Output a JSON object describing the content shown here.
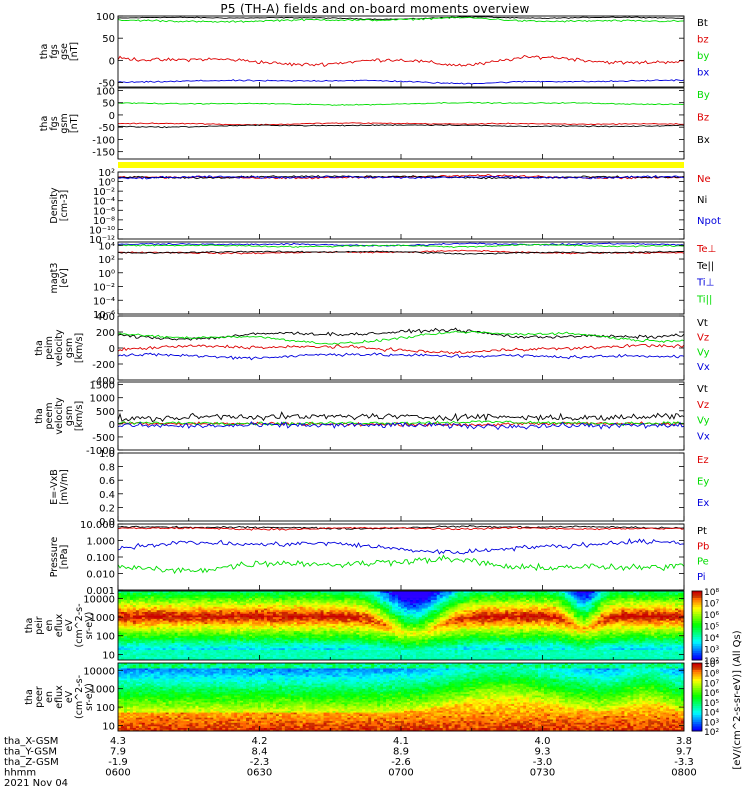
{
  "title": "P5 (TH-A) fields and on-board moments overview",
  "date_label": "2021 Nov 04",
  "colorbar_unit_label": "[eV/(cm^2-s-sr-eV)] (All Qs)",
  "ephemeris": {
    "rows": [
      {
        "label": "tha_X-GSM",
        "values": [
          "4.3",
          "4.2",
          "4.1",
          "4.0",
          "3.8"
        ]
      },
      {
        "label": "tha_Y-GSM",
        "values": [
          "7.9",
          "8.4",
          "8.9",
          "9.3",
          "9.7"
        ]
      },
      {
        "label": "tha_Z-GSM",
        "values": [
          "-1.9",
          "-2.3",
          "-2.6",
          "-3.0",
          "-3.3"
        ]
      },
      {
        "label": "hhmm",
        "values": [
          "0600",
          "0630",
          "0700",
          "0730",
          "0800"
        ]
      }
    ]
  },
  "chart_data": [
    {
      "id": "fgs_gse",
      "type": "line",
      "ylabel": [
        "tha",
        "fgs",
        "gse",
        "[nT]"
      ],
      "ylim": [
        -60,
        100
      ],
      "yticks": [
        "100",
        "50",
        "0",
        "-50"
      ],
      "ytick_values": [
        100,
        50,
        0,
        -50
      ],
      "series": [
        {
          "name": "Bt",
          "color": "#000000",
          "base": 95,
          "amp": 3,
          "noise": 1
        },
        {
          "name": "bz",
          "color": "#dd0000",
          "base": 0,
          "amp": 12,
          "noise": 4
        },
        {
          "name": "by",
          "color": "#00dd00",
          "base": 90,
          "amp": 4,
          "noise": 2
        },
        {
          "name": "bx",
          "color": "#0000dd",
          "base": -47,
          "amp": 3,
          "noise": 1.5
        }
      ]
    },
    {
      "id": "fgs_gsm",
      "type": "line",
      "ylabel": [
        "tha",
        "fgs",
        "gsm",
        "[nT]"
      ],
      "ylim": [
        -180,
        110
      ],
      "yticks": [
        "100",
        "50",
        "0",
        "-50",
        "-100",
        "-150"
      ],
      "ytick_values": [
        100,
        50,
        0,
        -50,
        -100,
        -150
      ],
      "series": [
        {
          "name": "By",
          "color": "#00dd00",
          "base": 45,
          "amp": 5,
          "noise": 2
        },
        {
          "name": "Bz",
          "color": "#dd0000",
          "base": -35,
          "amp": 6,
          "noise": 2
        },
        {
          "name": "Bx",
          "color": "#000000",
          "base": -45,
          "amp": 6,
          "noise": 2
        }
      ]
    },
    {
      "id": "density",
      "type": "line",
      "scale": "log",
      "ylabel": [
        "Density",
        "[cm-3]"
      ],
      "ylim": [
        1e-12,
        100
      ],
      "yticks": [
        "10²",
        "10⁰",
        "10⁻²",
        "10⁻⁴",
        "10⁻⁶",
        "10⁻⁸",
        "10⁻¹⁰",
        "10⁻¹²"
      ],
      "ytick_values": [
        100,
        1,
        0.01,
        0.0001,
        1e-06,
        1e-08,
        1e-10,
        1e-12
      ],
      "series": [
        {
          "name": "Ne",
          "color": "#dd0000",
          "base": 8,
          "amp": 0.5,
          "noise": 0.2
        },
        {
          "name": "Ni",
          "color": "#000000",
          "base": 10,
          "amp": 0.5,
          "noise": 0.2
        },
        {
          "name": "Npot",
          "color": "#0000dd",
          "base": 7,
          "amp": 0.5,
          "noise": 0.2
        }
      ]
    },
    {
      "id": "temperature",
      "type": "line",
      "scale": "log",
      "ylabel": [
        "magt3",
        "[eV]"
      ],
      "ylim": [
        1e-06,
        30000
      ],
      "yticks": [
        "10⁴",
        "10²",
        "10⁰",
        "10⁻²",
        "10⁻⁴",
        "10⁻⁶"
      ],
      "ytick_values": [
        10000,
        100,
        1,
        0.01,
        0.0001,
        1e-06
      ],
      "series": [
        {
          "name": "Te⊥",
          "color": "#dd0000",
          "base": 900,
          "amp": 0.3,
          "noise": 0.1
        },
        {
          "name": "Te||",
          "color": "#000000",
          "base": 1000,
          "amp": 0.3,
          "noise": 0.1
        },
        {
          "name": "Ti⊥",
          "color": "#0000dd",
          "base": 12000,
          "amp": 0.4,
          "noise": 0.1
        },
        {
          "name": "Ti||",
          "color": "#00dd00",
          "base": 9000,
          "amp": 0.4,
          "noise": 0.1
        }
      ]
    },
    {
      "id": "peim_velocity",
      "type": "line",
      "ylabel": [
        "tha",
        "peim",
        "velocity",
        "gsm",
        "[km/s]"
      ],
      "ylim": [
        -400,
        400
      ],
      "yticks": [
        "400",
        "200",
        "0",
        "-200",
        "-400"
      ],
      "ytick_values": [
        400,
        200,
        0,
        -200,
        -400
      ],
      "series": [
        {
          "name": "Vt",
          "color": "#000000",
          "base": 160,
          "amp": 60,
          "noise": 20
        },
        {
          "name": "Vz",
          "color": "#dd0000",
          "base": 0,
          "amp": 40,
          "noise": 20
        },
        {
          "name": "Vy",
          "color": "#00dd00",
          "base": 120,
          "amp": 80,
          "noise": 15
        },
        {
          "name": "Vx",
          "color": "#0000dd",
          "base": -90,
          "amp": 40,
          "noise": 20
        }
      ]
    },
    {
      "id": "peem_velocity",
      "type": "line",
      "ylabel": [
        "tha",
        "peem",
        "velocity",
        "gsm",
        "[km/s]"
      ],
      "ylim": [
        -1000,
        1600
      ],
      "yticks": [
        "1500",
        "1000",
        "500",
        "0",
        "-500",
        "-1000"
      ],
      "ytick_values": [
        1500,
        1000,
        500,
        0,
        -500,
        -1000
      ],
      "series": [
        {
          "name": "Vt",
          "color": "#000000",
          "base": 250,
          "amp": 80,
          "noise": 120
        },
        {
          "name": "Vz",
          "color": "#dd0000",
          "base": 0,
          "amp": 30,
          "noise": 60
        },
        {
          "name": "Vy",
          "color": "#00dd00",
          "base": 30,
          "amp": 30,
          "noise": 60
        },
        {
          "name": "Vx",
          "color": "#0000dd",
          "base": -60,
          "amp": 30,
          "noise": 100
        }
      ]
    },
    {
      "id": "efield",
      "type": "line",
      "ylabel": [
        "E=-VxB",
        "[mV/m]"
      ],
      "ylim": [
        0,
        1
      ],
      "yticks": [
        "1.0",
        "0.8",
        "0.6",
        "0.4",
        "0.2",
        "0.0"
      ],
      "ytick_values": [
        1,
        0.8,
        0.6,
        0.4,
        0.2,
        0
      ],
      "series": [
        {
          "name": "Ez",
          "color": "#dd0000"
        },
        {
          "name": "Ey",
          "color": "#00dd00"
        },
        {
          "name": "Ex",
          "color": "#0000dd"
        }
      ]
    },
    {
      "id": "pressure",
      "type": "line",
      "scale": "log",
      "ylabel": [
        "Pressure",
        "[nPa]"
      ],
      "ylim": [
        0.001,
        10
      ],
      "yticks": [
        "10.000",
        "1.000",
        "0.100",
        "0.010",
        "0.001"
      ],
      "ytick_values": [
        10,
        1,
        0.1,
        0.01,
        0.001
      ],
      "series": [
        {
          "name": "Pt",
          "color": "#000000",
          "base": 6,
          "amp": 0.15,
          "noise": 0.05
        },
        {
          "name": "Pb",
          "color": "#dd0000",
          "base": 5.5,
          "amp": 0.15,
          "noise": 0.05
        },
        {
          "name": "Pe",
          "color": "#00dd00",
          "base": 0.03,
          "amp": 0.8,
          "noise": 0.2
        },
        {
          "name": "Pi",
          "color": "#0000dd",
          "base": 0.5,
          "amp": 0.6,
          "noise": 0.15
        }
      ]
    },
    {
      "id": "peir_eflux",
      "type": "heatmap",
      "scale": "log",
      "ylabel": [
        "tha",
        "peir",
        "en",
        "eflux",
        "eV",
        "(cm^2-s-",
        "sr-eV)"
      ],
      "ylim": [
        5,
        25000
      ],
      "yticks": [
        "10000",
        "1000",
        "100",
        "10"
      ],
      "ytick_values": [
        10000,
        1000,
        100,
        10
      ],
      "colorbar": {
        "labels": [
          "10⁸",
          "10⁷",
          "10⁶",
          "10⁵",
          "10⁴",
          "10³",
          "10²"
        ],
        "min_exp": 2,
        "max_exp": 8
      }
    },
    {
      "id": "peer_eflux",
      "type": "heatmap",
      "scale": "log",
      "ylabel": [
        "tha",
        "peer",
        "en",
        "eflux",
        "eV",
        "(cm^2-s-",
        "sr-eV)"
      ],
      "ylim": [
        5,
        25000
      ],
      "yticks": [
        "10000",
        "1000",
        "100",
        "10"
      ],
      "ytick_values": [
        10000,
        1000,
        100,
        10
      ],
      "colorbar": {
        "labels": [
          "10⁹",
          "10⁸",
          "10⁷",
          "10⁶",
          "10⁵",
          "10⁴",
          "10³",
          "10²"
        ],
        "min_exp": 2,
        "max_exp": 9
      }
    }
  ]
}
